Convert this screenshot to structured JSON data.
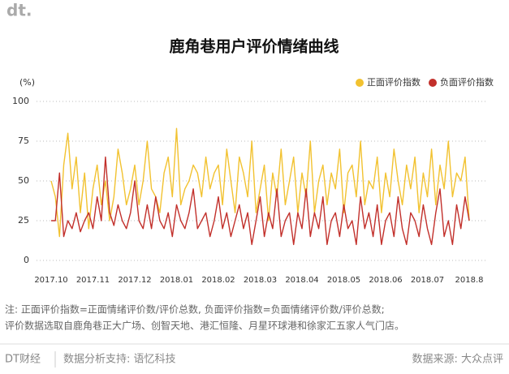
{
  "logo": "dt.",
  "notes": [
    "注: 正面评价指数=正面情绪评价数/评价总数, 负面评价指数=负面情绪评价数/评价总数;",
    "评价数据选取自鹿角巷正大广场、创智天地、港汇恒隆、月星环球港和徐家汇五家人气门店。"
  ],
  "footer": {
    "brand": "DT财经",
    "support": "数据分析支持: 语忆科技",
    "source": "数据来源: 大众点评"
  },
  "chart_data": {
    "type": "line",
    "title": "鹿角巷用户评价情绪曲线",
    "y_label": "(%)",
    "categories": [
      "2017.10",
      null,
      null,
      null,
      null,
      null,
      null,
      null,
      null,
      null,
      "2017.11",
      null,
      null,
      null,
      null,
      null,
      null,
      null,
      null,
      null,
      "2017.12",
      null,
      null,
      null,
      null,
      null,
      null,
      null,
      null,
      null,
      "2018.01",
      null,
      null,
      null,
      null,
      null,
      null,
      null,
      null,
      null,
      "2018.02",
      null,
      null,
      null,
      null,
      null,
      null,
      null,
      null,
      null,
      "2018.03",
      null,
      null,
      null,
      null,
      null,
      null,
      null,
      null,
      null,
      "2018.04",
      null,
      null,
      null,
      null,
      null,
      null,
      null,
      null,
      null,
      "2018.05",
      null,
      null,
      null,
      null,
      null,
      null,
      null,
      null,
      null,
      "2018.06",
      null,
      null,
      null,
      null,
      null,
      null,
      null,
      null,
      null,
      "2018.07",
      null,
      null,
      null,
      null,
      null,
      null,
      null,
      null,
      null,
      "2018.8"
    ],
    "series": [
      {
        "name": "正面评价指数",
        "color": "#f2c230",
        "values": [
          50,
          40,
          15,
          60,
          80,
          45,
          65,
          30,
          55,
          20,
          45,
          60,
          35,
          50,
          25,
          40,
          70,
          55,
          35,
          45,
          60,
          35,
          50,
          75,
          45,
          40,
          30,
          55,
          65,
          40,
          83,
          35,
          45,
          50,
          60,
          55,
          40,
          65,
          45,
          55,
          60,
          35,
          70,
          50,
          30,
          65,
          55,
          40,
          75,
          30,
          45,
          60,
          25,
          55,
          40,
          70,
          35,
          50,
          65,
          30,
          55,
          40,
          75,
          30,
          50,
          60,
          35,
          55,
          45,
          70,
          30,
          55,
          60,
          40,
          75,
          35,
          50,
          45,
          65,
          30,
          55,
          40,
          70,
          50,
          35,
          60,
          45,
          65,
          30,
          55,
          40,
          70,
          35,
          60,
          45,
          75,
          40,
          55,
          50,
          65,
          25
        ]
      },
      {
        "name": "负面评价指数",
        "color": "#c2302b",
        "values": [
          25,
          25,
          55,
          15,
          25,
          20,
          30,
          18,
          25,
          30,
          20,
          40,
          25,
          65,
          30,
          22,
          35,
          25,
          20,
          30,
          50,
          25,
          20,
          35,
          20,
          40,
          25,
          20,
          30,
          15,
          35,
          25,
          20,
          30,
          45,
          20,
          25,
          30,
          15,
          25,
          40,
          20,
          30,
          15,
          25,
          35,
          20,
          30,
          10,
          25,
          40,
          15,
          30,
          20,
          45,
          15,
          25,
          30,
          10,
          30,
          20,
          45,
          15,
          30,
          20,
          40,
          10,
          25,
          30,
          15,
          35,
          20,
          25,
          10,
          40,
          20,
          30,
          15,
          35,
          10,
          25,
          30,
          15,
          40,
          20,
          10,
          30,
          25,
          15,
          35,
          20,
          10,
          30,
          45,
          15,
          25,
          10,
          35,
          20,
          40,
          25
        ]
      }
    ],
    "ylim": [
      0,
      100
    ],
    "yticks": [
      0,
      25,
      50,
      75,
      100
    ],
    "grid": true,
    "legend": "top-right"
  }
}
